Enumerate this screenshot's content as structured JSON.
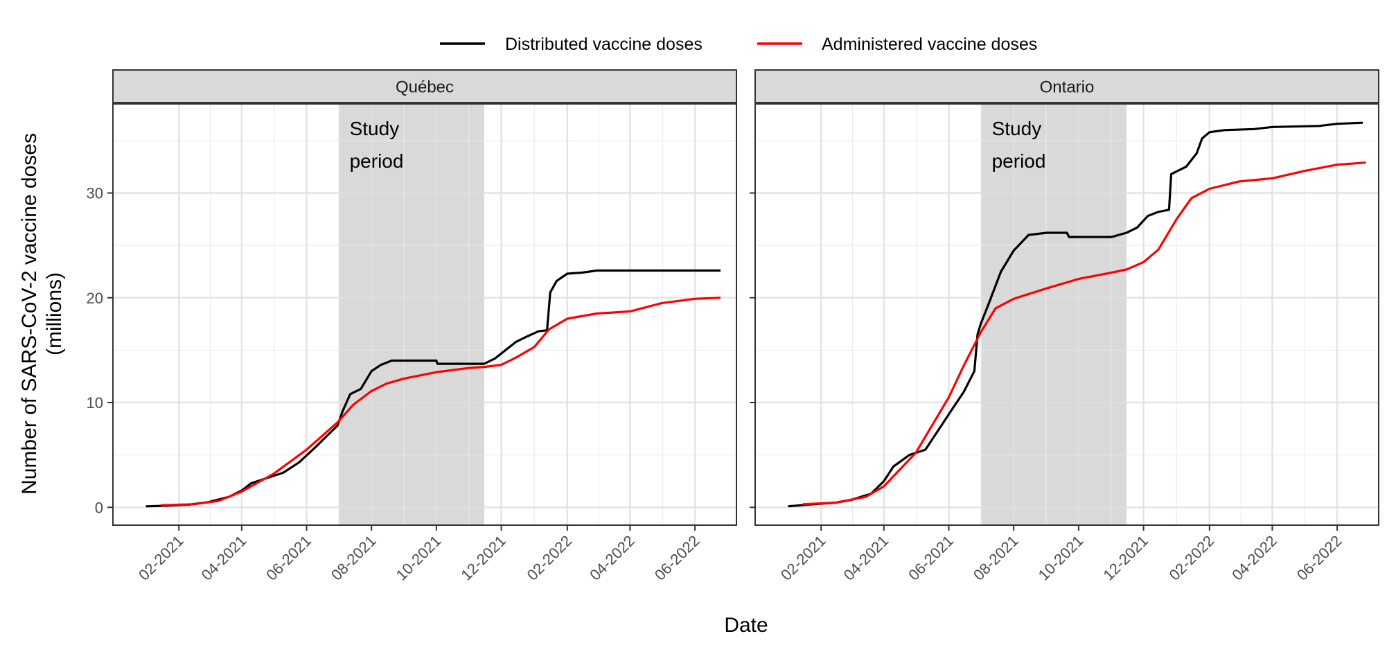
{
  "chart_data": {
    "type": "line",
    "xlabel": "Date",
    "ylabel_line1": "Number of SARS-CoV-2 vaccine doses",
    "ylabel_line2": "(millions)",
    "ylim": [
      -1.7,
      38.5
    ],
    "yticks": [
      0,
      10,
      20,
      30
    ],
    "xlim": [
      "2020-12-01",
      "2022-07-10"
    ],
    "xticks": [
      {
        "date": "2021-02-01",
        "label": "02-2021"
      },
      {
        "date": "2021-04-01",
        "label": "04-2021"
      },
      {
        "date": "2021-06-01",
        "label": "06-2021"
      },
      {
        "date": "2021-08-01",
        "label": "08-2021"
      },
      {
        "date": "2021-10-01",
        "label": "10-2021"
      },
      {
        "date": "2021-12-01",
        "label": "12-2021"
      },
      {
        "date": "2022-02-01",
        "label": "02-2022"
      },
      {
        "date": "2022-04-01",
        "label": "04-2022"
      },
      {
        "date": "2022-06-01",
        "label": "06-2022"
      }
    ],
    "grid": true,
    "legend_position": "top",
    "legend": [
      {
        "name": "Distributed vaccine doses",
        "color": "#000000"
      },
      {
        "name": "Administered vaccine doses",
        "color": "#ff0000"
      }
    ],
    "study_period": {
      "start": "2021-07-01",
      "end": "2021-11-15",
      "label_line1": "Study",
      "label_line2": "period"
    },
    "panels": [
      {
        "title": "Québec",
        "series": [
          {
            "name": "Distributed vaccine doses",
            "color": "#000000",
            "points": [
              [
                "2021-01-01",
                0.1
              ],
              [
                "2021-01-20",
                0.15
              ],
              [
                "2021-02-10",
                0.25
              ],
              [
                "2021-03-01",
                0.5
              ],
              [
                "2021-03-20",
                1.0
              ],
              [
                "2021-04-01",
                1.6
              ],
              [
                "2021-04-10",
                2.3
              ],
              [
                "2021-04-25",
                2.8
              ],
              [
                "2021-05-10",
                3.3
              ],
              [
                "2021-05-25",
                4.3
              ],
              [
                "2021-06-10",
                5.8
              ],
              [
                "2021-06-20",
                6.8
              ],
              [
                "2021-06-30",
                7.8
              ],
              [
                "2021-07-05",
                9.2
              ],
              [
                "2021-07-12",
                10.8
              ],
              [
                "2021-07-22",
                11.3
              ],
              [
                "2021-08-01",
                13.0
              ],
              [
                "2021-08-10",
                13.6
              ],
              [
                "2021-08-20",
                14.0
              ],
              [
                "2021-09-15",
                14.0
              ],
              [
                "2021-10-01",
                14.0
              ],
              [
                "2021-10-02",
                13.7
              ],
              [
                "2021-11-15",
                13.7
              ],
              [
                "2021-11-25",
                14.2
              ],
              [
                "2021-12-05",
                15.0
              ],
              [
                "2021-12-15",
                15.8
              ],
              [
                "2021-12-25",
                16.3
              ],
              [
                "2022-01-05",
                16.8
              ],
              [
                "2022-01-13",
                16.9
              ],
              [
                "2022-01-16",
                20.5
              ],
              [
                "2022-01-22",
                21.6
              ],
              [
                "2022-02-01",
                22.3
              ],
              [
                "2022-02-15",
                22.4
              ],
              [
                "2022-03-01",
                22.6
              ],
              [
                "2022-04-15",
                22.6
              ],
              [
                "2022-06-25",
                22.6
              ]
            ]
          },
          {
            "name": "Administered vaccine doses",
            "color": "#ff0000",
            "points": [
              [
                "2021-01-15",
                0.2
              ],
              [
                "2021-02-15",
                0.3
              ],
              [
                "2021-03-10",
                0.6
              ],
              [
                "2021-04-01",
                1.5
              ],
              [
                "2021-05-01",
                3.2
              ],
              [
                "2021-06-01",
                5.5
              ],
              [
                "2021-07-01",
                8.2
              ],
              [
                "2021-07-15",
                9.8
              ],
              [
                "2021-08-01",
                11.1
              ],
              [
                "2021-08-15",
                11.8
              ],
              [
                "2021-09-01",
                12.3
              ],
              [
                "2021-10-01",
                12.9
              ],
              [
                "2021-11-01",
                13.3
              ],
              [
                "2021-11-15",
                13.4
              ],
              [
                "2021-12-01",
                13.6
              ],
              [
                "2021-12-15",
                14.3
              ],
              [
                "2022-01-01",
                15.3
              ],
              [
                "2022-01-15",
                17.0
              ],
              [
                "2022-02-01",
                18.0
              ],
              [
                "2022-03-01",
                18.5
              ],
              [
                "2022-04-01",
                18.7
              ],
              [
                "2022-05-01",
                19.5
              ],
              [
                "2022-06-01",
                19.9
              ],
              [
                "2022-06-25",
                20.0
              ]
            ]
          }
        ]
      },
      {
        "title": "Ontario",
        "series": [
          {
            "name": "Distributed vaccine doses",
            "color": "#000000",
            "points": [
              [
                "2021-01-01",
                0.1
              ],
              [
                "2021-01-25",
                0.3
              ],
              [
                "2021-02-15",
                0.45
              ],
              [
                "2021-03-01",
                0.7
              ],
              [
                "2021-03-20",
                1.3
              ],
              [
                "2021-04-01",
                2.5
              ],
              [
                "2021-04-10",
                3.9
              ],
              [
                "2021-04-25",
                5.0
              ],
              [
                "2021-05-10",
                5.5
              ],
              [
                "2021-05-25",
                7.8
              ],
              [
                "2021-06-05",
                9.5
              ],
              [
                "2021-06-15",
                11.0
              ],
              [
                "2021-06-25",
                13.0
              ],
              [
                "2021-06-28",
                16.5
              ],
              [
                "2021-07-01",
                17.5
              ],
              [
                "2021-07-08",
                19.3
              ],
              [
                "2021-07-20",
                22.5
              ],
              [
                "2021-08-01",
                24.5
              ],
              [
                "2021-08-15",
                26.0
              ],
              [
                "2021-09-01",
                26.2
              ],
              [
                "2021-09-20",
                26.2
              ],
              [
                "2021-09-22",
                25.8
              ],
              [
                "2021-11-01",
                25.8
              ],
              [
                "2021-11-15",
                26.2
              ],
              [
                "2021-11-25",
                26.7
              ],
              [
                "2021-12-05",
                27.8
              ],
              [
                "2021-12-15",
                28.2
              ],
              [
                "2021-12-25",
                28.4
              ],
              [
                "2021-12-27",
                31.8
              ],
              [
                "2022-01-10",
                32.5
              ],
              [
                "2022-01-20",
                33.8
              ],
              [
                "2022-01-25",
                35.2
              ],
              [
                "2022-02-01",
                35.8
              ],
              [
                "2022-02-15",
                36.0
              ],
              [
                "2022-03-15",
                36.1
              ],
              [
                "2022-04-01",
                36.3
              ],
              [
                "2022-05-15",
                36.4
              ],
              [
                "2022-06-01",
                36.6
              ],
              [
                "2022-06-25",
                36.7
              ]
            ]
          },
          {
            "name": "Administered vaccine doses",
            "color": "#ff0000",
            "points": [
              [
                "2021-01-15",
                0.3
              ],
              [
                "2021-02-15",
                0.45
              ],
              [
                "2021-03-15",
                1.0
              ],
              [
                "2021-04-01",
                2.0
              ],
              [
                "2021-05-01",
                5.2
              ],
              [
                "2021-06-01",
                10.5
              ],
              [
                "2021-06-15",
                13.5
              ],
              [
                "2021-07-01",
                16.7
              ],
              [
                "2021-07-15",
                19.0
              ],
              [
                "2021-08-01",
                19.9
              ],
              [
                "2021-09-01",
                20.9
              ],
              [
                "2021-10-01",
                21.8
              ],
              [
                "2021-11-01",
                22.4
              ],
              [
                "2021-11-15",
                22.7
              ],
              [
                "2021-12-01",
                23.4
              ],
              [
                "2021-12-15",
                24.6
              ],
              [
                "2022-01-01",
                27.5
              ],
              [
                "2022-01-15",
                29.5
              ],
              [
                "2022-02-01",
                30.4
              ],
              [
                "2022-03-01",
                31.1
              ],
              [
                "2022-04-01",
                31.4
              ],
              [
                "2022-05-01",
                32.1
              ],
              [
                "2022-06-01",
                32.7
              ],
              [
                "2022-06-28",
                32.9
              ]
            ]
          }
        ]
      }
    ]
  }
}
